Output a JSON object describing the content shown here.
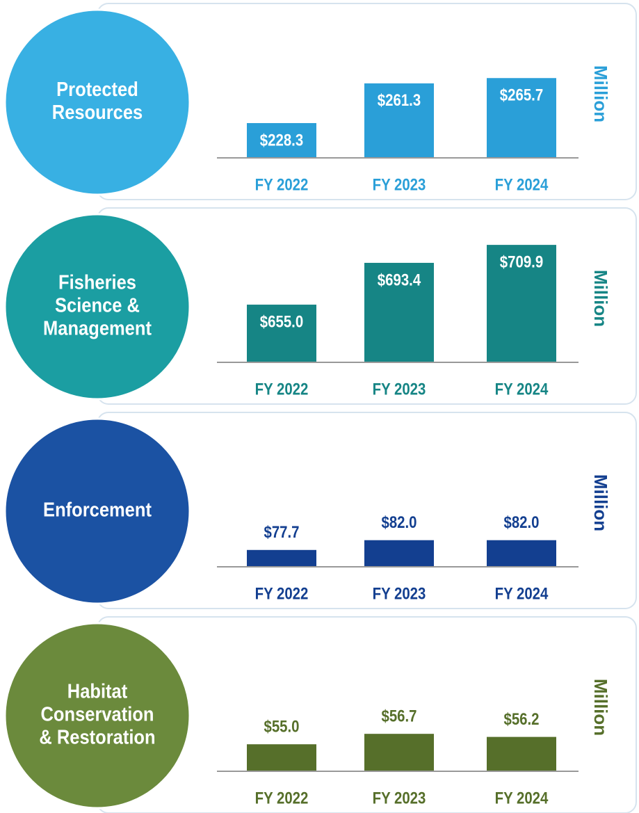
{
  "chart_data": [
    {
      "type": "bar",
      "title": [
        "Protected",
        "Resources"
      ],
      "unit": "Million",
      "categories": [
        "FY 2022",
        "FY 2023",
        "FY 2024"
      ],
      "values": [
        228.3,
        261.3,
        265.7
      ],
      "value_labels": [
        "$228.3",
        "$261.3",
        "$265.7"
      ],
      "label_position": "inside",
      "color": "#2a9fd8",
      "circle_color": "#38b0e3",
      "ylim": [
        199.4,
        303.4
      ]
    },
    {
      "type": "bar",
      "title": [
        "Fisheries",
        "Science &",
        "Management"
      ],
      "unit": "Million",
      "categories": [
        "FY 2022",
        "FY 2023",
        "FY 2024"
      ],
      "values": [
        655.0,
        693.4,
        709.9
      ],
      "value_labels": [
        "$655.0",
        "$693.4",
        "$709.9"
      ],
      "label_position": "inside",
      "color": "#168585",
      "circle_color": "#1b9ea2",
      "ylim": [
        602,
        717
      ]
    },
    {
      "type": "bar",
      "title": [
        "Enforcement"
      ],
      "unit": "Million",
      "categories": [
        "FY 2022",
        "FY 2023",
        "FY 2024"
      ],
      "values": [
        77.7,
        82.0,
        82.0
      ],
      "value_labels": [
        "$77.7",
        "$82.0",
        "$82.0"
      ],
      "label_position": "above",
      "color": "#133f90",
      "circle_color": "#1b52a3",
      "ylim": [
        70.3,
        125.3
      ]
    },
    {
      "type": "bar",
      "title": [
        "Habitat",
        "Conservation",
        "& Restoration"
      ],
      "unit": "Million",
      "categories": [
        "FY 2022",
        "FY 2023",
        "FY 2024"
      ],
      "values": [
        55.0,
        56.7,
        56.2
      ],
      "value_labels": [
        "$55.0",
        "$56.7",
        "$56.2"
      ],
      "label_position": "above",
      "color": "#566f2a",
      "circle_color": "#6b8a3c",
      "ylim": [
        50.6,
        71.0
      ]
    }
  ]
}
